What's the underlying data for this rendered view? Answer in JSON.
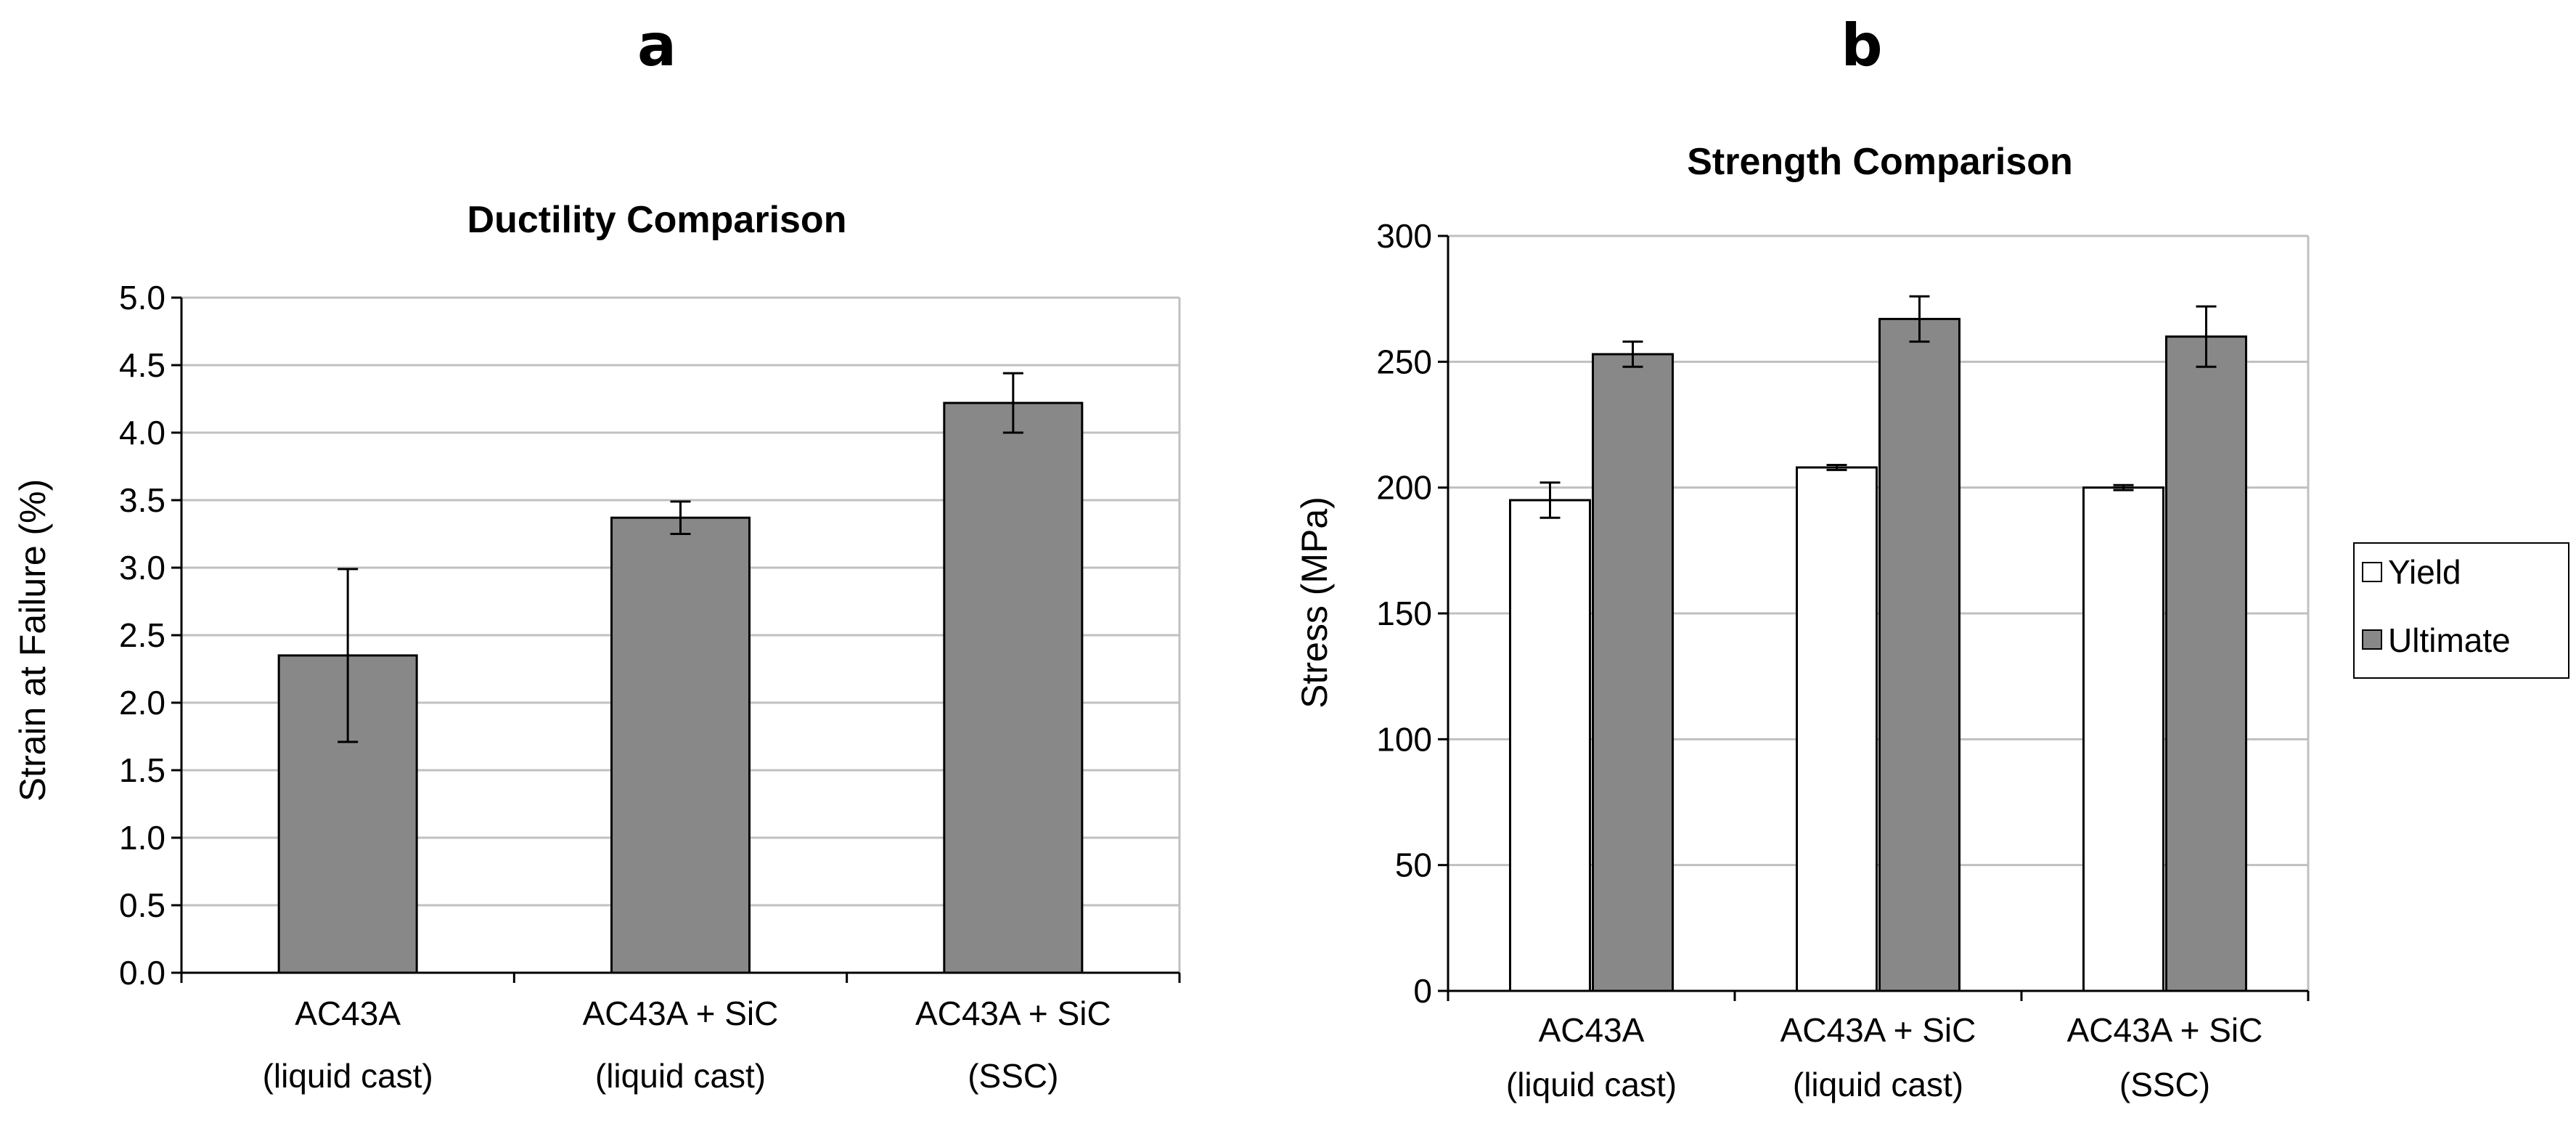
{
  "chart_data": [
    {
      "panel": "a",
      "type": "bar",
      "title": "Ductility Comparison",
      "ylabel": "Strain at Failure (%)",
      "xlabel": "",
      "ylim": [
        0,
        5
      ],
      "yticks": [
        "0.0",
        "0.5",
        "1.0",
        "1.5",
        "2.0",
        "2.5",
        "3.0",
        "3.5",
        "4.0",
        "4.5",
        "5.0"
      ],
      "grid": true,
      "categories": [
        [
          "AC43A",
          "(liquid cast)"
        ],
        [
          "AC43A + SiC",
          "(liquid cast)"
        ],
        [
          "AC43A + SiC",
          "(SSC)"
        ]
      ],
      "series": [
        {
          "values": [
            2.35,
            3.37,
            4.22
          ],
          "error": [
            0.64,
            0.12,
            0.22
          ],
          "color": "#888888"
        }
      ]
    },
    {
      "panel": "b",
      "type": "bar",
      "title": "Strength Comparison",
      "ylabel": "Stress (MPa)",
      "xlabel": "",
      "ylim": [
        0,
        300
      ],
      "yticks": [
        "0",
        "50",
        "100",
        "150",
        "200",
        "250",
        "300"
      ],
      "grid": true,
      "legend": "right",
      "categories": [
        [
          "AC43A",
          "(liquid cast)"
        ],
        [
          "AC43A + SiC",
          "(liquid cast)"
        ],
        [
          "AC43A + SiC",
          "(SSC)"
        ]
      ],
      "series": [
        {
          "name": "Yield",
          "values": [
            195,
            208,
            200
          ],
          "error": [
            7,
            1,
            1
          ],
          "color": "#ffffff"
        },
        {
          "name": "Ultimate",
          "values": [
            253,
            267,
            260
          ],
          "error": [
            5,
            9,
            12
          ],
          "color": "#888888"
        }
      ]
    }
  ]
}
